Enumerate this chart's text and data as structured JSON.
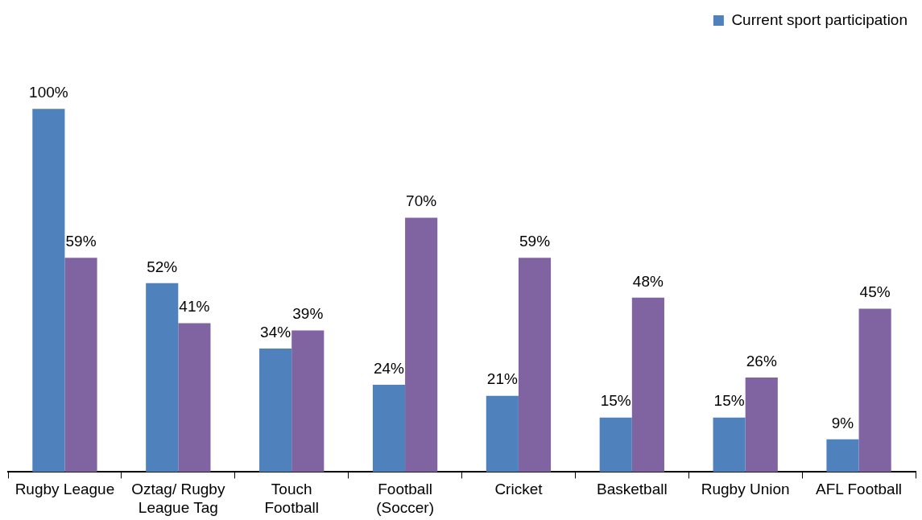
{
  "chart_data": {
    "type": "bar",
    "categories": [
      "Rugby League",
      "Oztag/ Rugby League Tag",
      "Touch Football",
      "Football (Soccer)",
      "Cricket",
      "Basketball",
      "Rugby Union",
      "AFL Football"
    ],
    "series": [
      {
        "name": "Current sport participation",
        "color": "#4f81bd",
        "values": [
          100,
          52,
          34,
          24,
          21,
          15,
          15,
          9
        ],
        "value_labels": [
          "100%",
          "52%",
          "34%",
          "24%",
          "21%",
          "15%",
          "15%",
          "9%"
        ]
      },
      {
        "color": "#8064a2",
        "values": [
          59,
          41,
          39,
          70,
          59,
          48,
          26,
          45
        ],
        "value_labels": [
          "59%",
          "41%",
          "39%",
          "70%",
          "59%",
          "48%",
          "26%",
          "45%"
        ]
      }
    ],
    "legend": "top right",
    "grid": false
  }
}
